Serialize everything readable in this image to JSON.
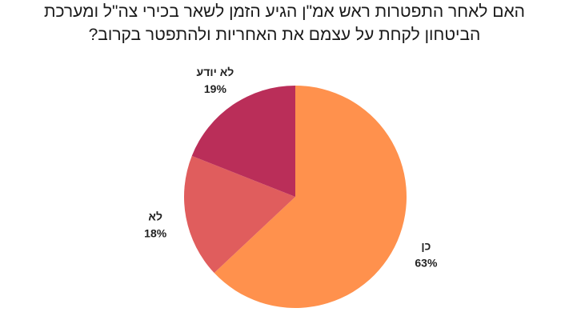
{
  "chart_data": {
    "type": "pie",
    "title_lines": [
      "האם לאחר התפטרות ראש אמ\"ן הגיע הזמן לשאר בכירי צה\"ל ומערכת",
      "הביטחון לקחת על עצמם את האחריות ולהתפטר בקרוב?"
    ],
    "slices": [
      {
        "label": "כן",
        "value": 63,
        "value_text": "63%",
        "color": "#FF914D"
      },
      {
        "label": "לא",
        "value": 18,
        "value_text": "18%",
        "color": "#E05D5D"
      },
      {
        "label": "לא יודע",
        "value": 19,
        "value_text": "19%",
        "color": "#BA2E59"
      }
    ]
  }
}
